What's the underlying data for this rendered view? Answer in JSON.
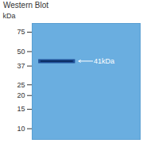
{
  "chart_data": {
    "type": "blot",
    "title": "Western Blot",
    "y_label": "kDa",
    "log": "y",
    "ylim": [
      8,
      90
    ],
    "yticks": [
      10,
      15,
      20,
      25,
      37,
      50,
      75
    ],
    "values": [
      41
    ],
    "value_labels": [
      "41kDa"
    ],
    "data_labels": true,
    "color": "#1f4f96"
  }
}
